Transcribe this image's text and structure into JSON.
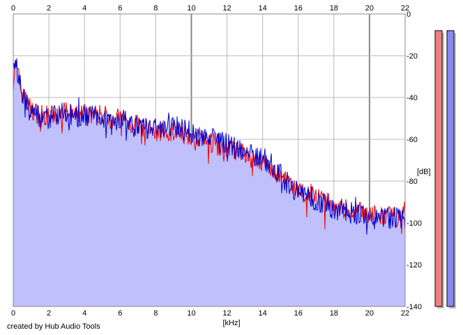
{
  "credit": "created by Hub Audio Tools",
  "colors": {
    "left_channel": "#ee0000",
    "right_channel": "#0000cc",
    "fill": "#c0c0fc",
    "grid": "#b8b8b8",
    "grid_major": "#888888",
    "meter_left": "#f08080",
    "meter_right": "#8888f0"
  },
  "chart_data": {
    "type": "line",
    "title": "",
    "xlabel": "[kHz]",
    "ylabel": "[dB]",
    "xlim": [
      0,
      22
    ],
    "ylim": [
      -140,
      0
    ],
    "x_ticks": [
      0,
      2,
      4,
      6,
      8,
      10,
      12,
      14,
      16,
      18,
      20,
      22
    ],
    "y_ticks": [
      0,
      -20,
      -40,
      -60,
      -80,
      -100,
      -120,
      -140
    ],
    "y_tick_labels": [
      "0",
      "-20",
      "-40",
      "-60",
      "-80",
      "-100",
      "-120",
      "-140"
    ],
    "grid": true,
    "x_axis_position": "top and bottom",
    "y_axis_position": "right",
    "series": [
      {
        "channel": "left",
        "color": "#ee0000",
        "x": [
          0,
          0.1,
          0.3,
          0.5,
          0.8,
          1,
          1.5,
          2,
          2.5,
          3,
          3.5,
          4,
          4.5,
          5,
          5.5,
          6,
          6.5,
          7,
          7.5,
          8,
          8.5,
          9,
          9.5,
          10,
          10.5,
          11,
          11.5,
          12,
          12.5,
          13,
          13.5,
          14,
          14.5,
          15,
          15.5,
          16,
          16.5,
          17,
          17.5,
          18,
          18.5,
          19,
          19.5,
          20,
          20.5,
          21,
          21.5,
          22
        ],
        "values": [
          -32,
          -24,
          -30,
          -38,
          -43,
          -46,
          -48,
          -49,
          -48,
          -47,
          -49,
          -47,
          -48,
          -48,
          -50,
          -50,
          -52,
          -53,
          -55,
          -56,
          -56,
          -56,
          -57,
          -58,
          -59,
          -61,
          -63,
          -64,
          -66,
          -68,
          -69,
          -71,
          -74,
          -78,
          -82,
          -84,
          -86,
          -88,
          -90,
          -92,
          -93,
          -94,
          -95,
          -96,
          -97,
          -97,
          -97,
          -97
        ]
      },
      {
        "channel": "right",
        "color": "#0000cc",
        "x": [
          0,
          0.1,
          0.3,
          0.5,
          0.8,
          1,
          1.5,
          2,
          2.5,
          3,
          3.5,
          4,
          4.5,
          5,
          5.5,
          6,
          6.5,
          7,
          7.5,
          8,
          8.5,
          9,
          9.5,
          10,
          10.5,
          11,
          11.5,
          12,
          12.5,
          13,
          13.5,
          14,
          14.5,
          15,
          15.5,
          16,
          16.5,
          17,
          17.5,
          18,
          18.5,
          19,
          19.5,
          20,
          20.5,
          21,
          21.5,
          22
        ],
        "values": [
          -30,
          -23,
          -30,
          -38,
          -44,
          -47,
          -49,
          -50,
          -48,
          -47,
          -50,
          -48,
          -49,
          -49,
          -51,
          -50,
          -53,
          -54,
          -55,
          -55,
          -55,
          -54,
          -55,
          -57,
          -58,
          -59,
          -61,
          -62,
          -64,
          -66,
          -67,
          -69,
          -72,
          -77,
          -82,
          -85,
          -87,
          -89,
          -91,
          -93,
          -94,
          -95,
          -96,
          -97,
          -98,
          -98,
          -98,
          -98
        ]
      }
    ],
    "level_meters": [
      {
        "channel": "left",
        "color": "#f08080",
        "level_db": -8
      },
      {
        "channel": "right",
        "color": "#8888f0",
        "level_db": -8
      }
    ]
  }
}
